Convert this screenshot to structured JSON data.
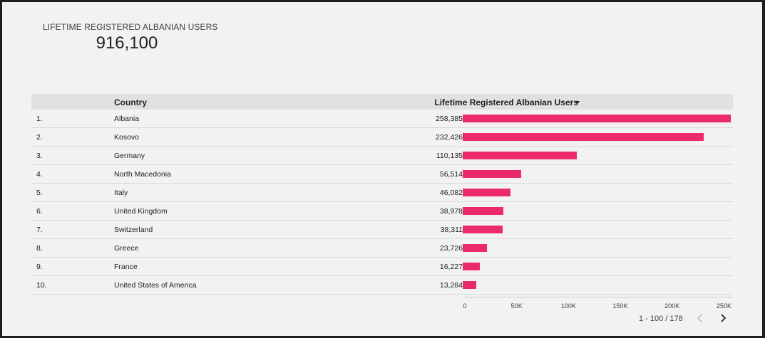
{
  "scorecard": {
    "label": "LIFETIME REGISTERED ALBANIAN USERS",
    "value": "916,100"
  },
  "table": {
    "headers": {
      "country": "Country",
      "metric": "Lifetime Registered Albanian Users"
    },
    "sort_direction": "descending",
    "rows": [
      {
        "rank": "1.",
        "country": "Albania",
        "value_text": "258,385",
        "value": 258385
      },
      {
        "rank": "2.",
        "country": "Kosovo",
        "value_text": "232,426",
        "value": 232426
      },
      {
        "rank": "3.",
        "country": "Germany",
        "value_text": "110,135",
        "value": 110135
      },
      {
        "rank": "4.",
        "country": "North Macedonia",
        "value_text": "56,514",
        "value": 56514
      },
      {
        "rank": "5.",
        "country": "Italy",
        "value_text": "46,082",
        "value": 46082
      },
      {
        "rank": "6.",
        "country": "United Kingdom",
        "value_text": "38,978",
        "value": 38978
      },
      {
        "rank": "7.",
        "country": "Switzerland",
        "value_text": "38,311",
        "value": 38311
      },
      {
        "rank": "8.",
        "country": "Greece",
        "value_text": "23,726",
        "value": 23726
      },
      {
        "rank": "9.",
        "country": "France",
        "value_text": "16,227",
        "value": 16227
      },
      {
        "rank": "10.",
        "country": "United States of America",
        "value_text": "13,284",
        "value": 13284
      }
    ]
  },
  "axis": {
    "max": 260000,
    "ticks": [
      {
        "label": "0",
        "value": 0
      },
      {
        "label": "50K",
        "value": 50000
      },
      {
        "label": "100K",
        "value": 100000
      },
      {
        "label": "150K",
        "value": 150000
      },
      {
        "label": "200K",
        "value": 200000
      },
      {
        "label": "250K",
        "value": 250000
      }
    ]
  },
  "pagination": {
    "text": "1 - 100 / 178"
  },
  "colors": {
    "bar": "#ec2a6b",
    "header_bg": "#e1e1e1",
    "page_bg": "#f2f2f2"
  }
}
